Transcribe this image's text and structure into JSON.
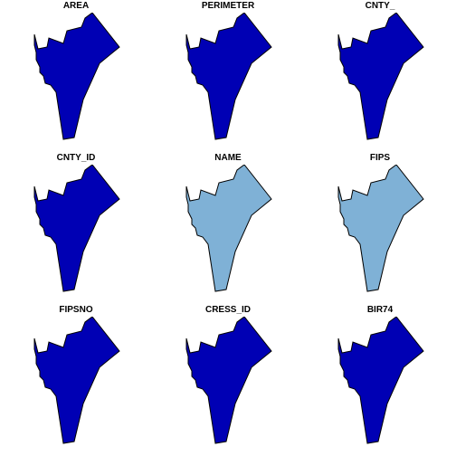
{
  "chart_data": {
    "type": "choropleth",
    "grid": false,
    "legend": "none",
    "colors": {
      "dark": "#0000b4",
      "light": "#7fb1d6",
      "outline": "#000000"
    },
    "panels": [
      {
        "title": "AREA",
        "fill": "dark"
      },
      {
        "title": "PERIMETER",
        "fill": "dark"
      },
      {
        "title": "CNTY_",
        "fill": "dark"
      },
      {
        "title": "CNTY_ID",
        "fill": "dark"
      },
      {
        "title": "NAME",
        "fill": "light"
      },
      {
        "title": "FIPS",
        "fill": "light"
      },
      {
        "title": "FIPSNO",
        "fill": "dark"
      },
      {
        "title": "CRESS_ID",
        "fill": "dark"
      },
      {
        "title": "BIR74",
        "fill": "dark"
      }
    ]
  }
}
